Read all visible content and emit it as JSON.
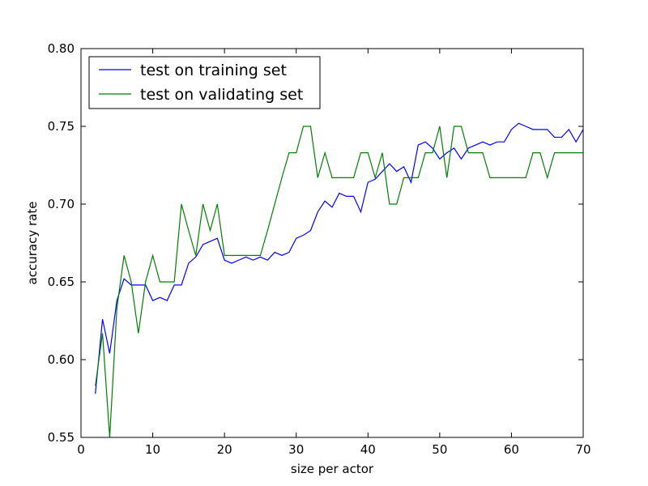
{
  "chart_data": {
    "type": "line",
    "title": "",
    "xlabel": "size per actor",
    "ylabel": "accuracy rate",
    "xlim": [
      0,
      70
    ],
    "ylim": [
      0.55,
      0.8
    ],
    "xticks": [
      0,
      10,
      20,
      30,
      40,
      50,
      60,
      70
    ],
    "xtick_labels": [
      "0",
      "10",
      "20",
      "30",
      "40",
      "50",
      "60",
      "70"
    ],
    "yticks": [
      0.55,
      0.6,
      0.65,
      0.7,
      0.75,
      0.8
    ],
    "ytick_labels": [
      "0.55",
      "0.60",
      "0.65",
      "0.70",
      "0.75",
      "0.80"
    ],
    "grid": false,
    "legend_position": "upper-left",
    "x": [
      2,
      3,
      4,
      5,
      6,
      7,
      8,
      9,
      10,
      11,
      12,
      13,
      14,
      15,
      16,
      17,
      18,
      19,
      20,
      21,
      22,
      23,
      24,
      25,
      26,
      27,
      28,
      29,
      30,
      31,
      32,
      33,
      34,
      35,
      36,
      37,
      38,
      39,
      40,
      41,
      42,
      43,
      44,
      45,
      46,
      47,
      48,
      49,
      50,
      51,
      52,
      53,
      54,
      55,
      56,
      57,
      58,
      59,
      60,
      61,
      62,
      63,
      64,
      65,
      66,
      67,
      68,
      69,
      70
    ],
    "series": [
      {
        "name": "test on training set",
        "color": "#0000ff",
        "values": [
          0.578,
          0.626,
          0.604,
          0.638,
          0.652,
          0.648,
          0.648,
          0.648,
          0.638,
          0.64,
          0.638,
          0.648,
          0.648,
          0.662,
          0.666,
          0.674,
          0.676,
          0.678,
          0.664,
          0.662,
          0.664,
          0.666,
          0.664,
          0.666,
          0.664,
          0.669,
          0.667,
          0.669,
          0.678,
          0.68,
          0.683,
          0.695,
          0.702,
          0.698,
          0.707,
          0.705,
          0.705,
          0.695,
          0.714,
          0.716,
          0.721,
          0.726,
          0.721,
          0.724,
          0.714,
          0.738,
          0.74,
          0.736,
          0.729,
          0.733,
          0.736,
          0.729,
          0.736,
          0.738,
          0.74,
          0.738,
          0.74,
          0.74,
          0.748,
          0.752,
          0.75,
          0.748,
          0.748,
          0.748,
          0.743,
          0.743,
          0.748,
          0.74,
          0.748
        ]
      },
      {
        "name": "test on validating set",
        "color": "#008000",
        "values": [
          0.583,
          0.617,
          0.55,
          0.633,
          0.667,
          0.65,
          0.617,
          0.65,
          0.667,
          0.65,
          0.65,
          0.65,
          0.7,
          0.683,
          0.667,
          0.7,
          0.683,
          0.7,
          0.667,
          0.667,
          0.667,
          0.667,
          0.667,
          0.667,
          0.683,
          0.7,
          0.717,
          0.733,
          0.733,
          0.75,
          0.75,
          0.717,
          0.733,
          0.717,
          0.717,
          0.717,
          0.717,
          0.733,
          0.733,
          0.717,
          0.733,
          0.7,
          0.7,
          0.717,
          0.717,
          0.717,
          0.733,
          0.733,
          0.75,
          0.717,
          0.75,
          0.75,
          0.733,
          0.733,
          0.733,
          0.717,
          0.717,
          0.717,
          0.717,
          0.717,
          0.717,
          0.733,
          0.733,
          0.717,
          0.733,
          0.733,
          0.733,
          0.733,
          0.733
        ]
      }
    ]
  }
}
